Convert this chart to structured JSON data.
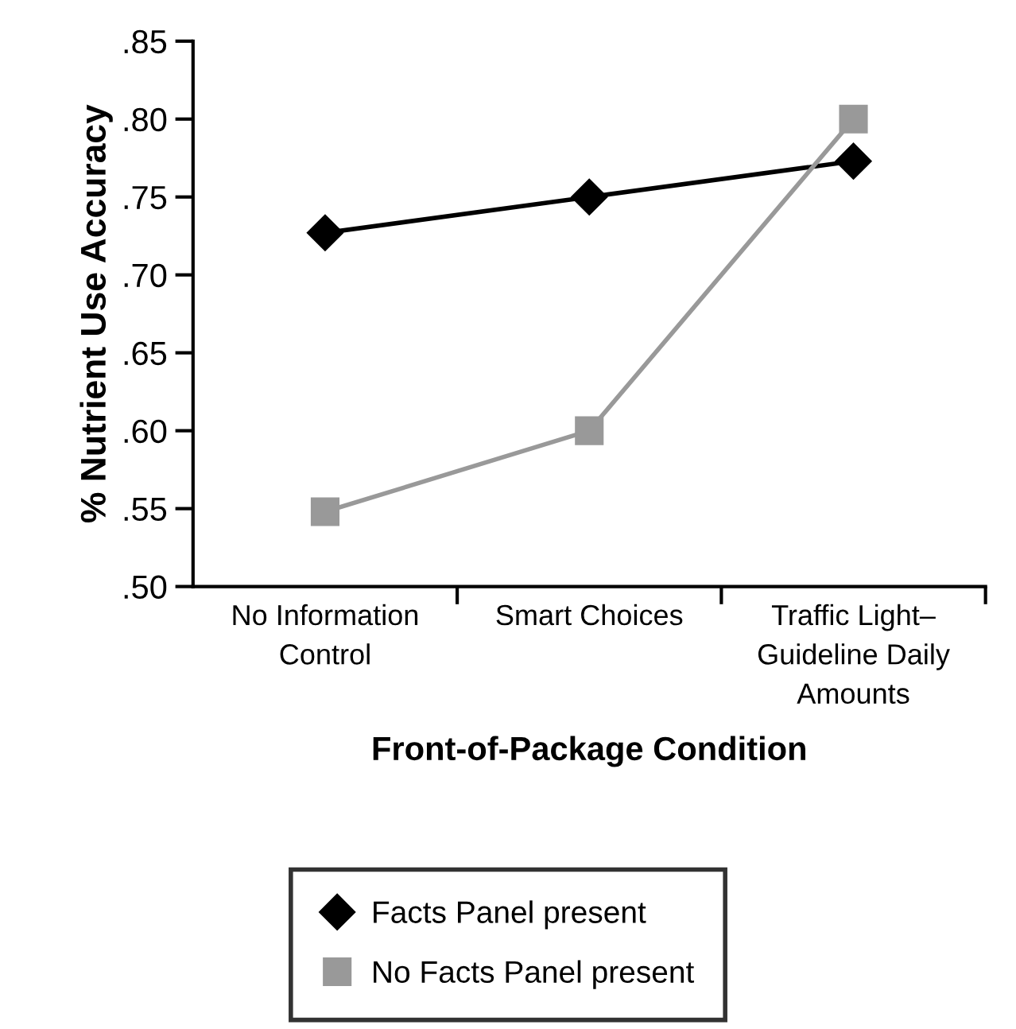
{
  "chart_data": {
    "type": "line",
    "xlabel": "Front-of-Package Condition",
    "ylabel": "% Nutrient Use Accuracy",
    "categories": [
      "No Information\nControl",
      "Smart Choices",
      "Traffic Light–\nGuideline Daily\nAmounts"
    ],
    "series": [
      {
        "name": "Facts Panel present",
        "color": "#000000",
        "marker": "diamond",
        "values": [
          0.727,
          0.75,
          0.773
        ]
      },
      {
        "name": "No Facts Panel present",
        "color": "#999999",
        "marker": "square",
        "values": [
          0.548,
          0.6,
          0.8
        ]
      }
    ],
    "ylim": [
      0.5,
      0.85
    ],
    "yticks": [
      {
        "value": 0.5,
        "label": ".50"
      },
      {
        "value": 0.55,
        "label": ".55"
      },
      {
        "value": 0.6,
        "label": ".60"
      },
      {
        "value": 0.65,
        "label": ".65"
      },
      {
        "value": 0.7,
        "label": ".70"
      },
      {
        "value": 0.75,
        "label": ".75"
      },
      {
        "value": 0.8,
        "label": ".80"
      },
      {
        "value": 0.85,
        "label": ".85"
      }
    ],
    "grid": false,
    "legend": "bottom",
    "line_style": "solid"
  }
}
